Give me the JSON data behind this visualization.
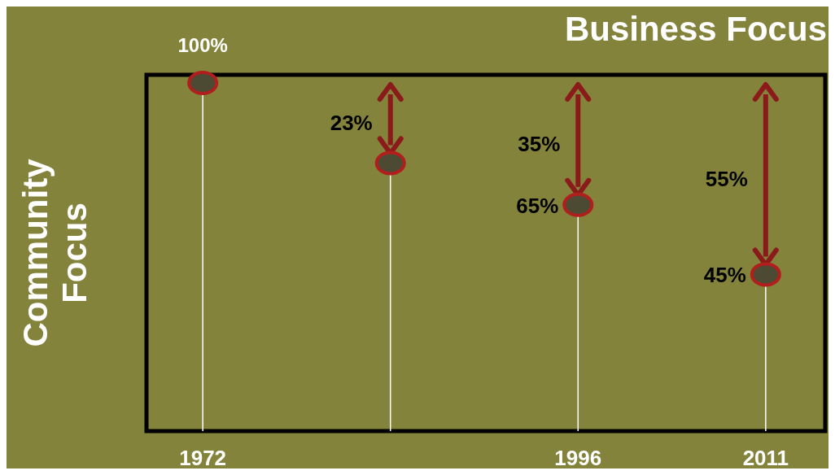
{
  "chart_data": {
    "type": "lollipop",
    "title": "Business Focus",
    "ylabel": "Community Focus",
    "categories": [
      "1972",
      null,
      "1996",
      "2011"
    ],
    "values": [
      100,
      77,
      65,
      45
    ],
    "value_labels": [
      "100%",
      null,
      "65%",
      "45%"
    ],
    "color": "#4d4a33",
    "ylim": [
      0,
      100
    ],
    "marker": "circle",
    "annotations": [
      "23%",
      "35%",
      "55%"
    ],
    "tick_labels": "x"
  }
}
